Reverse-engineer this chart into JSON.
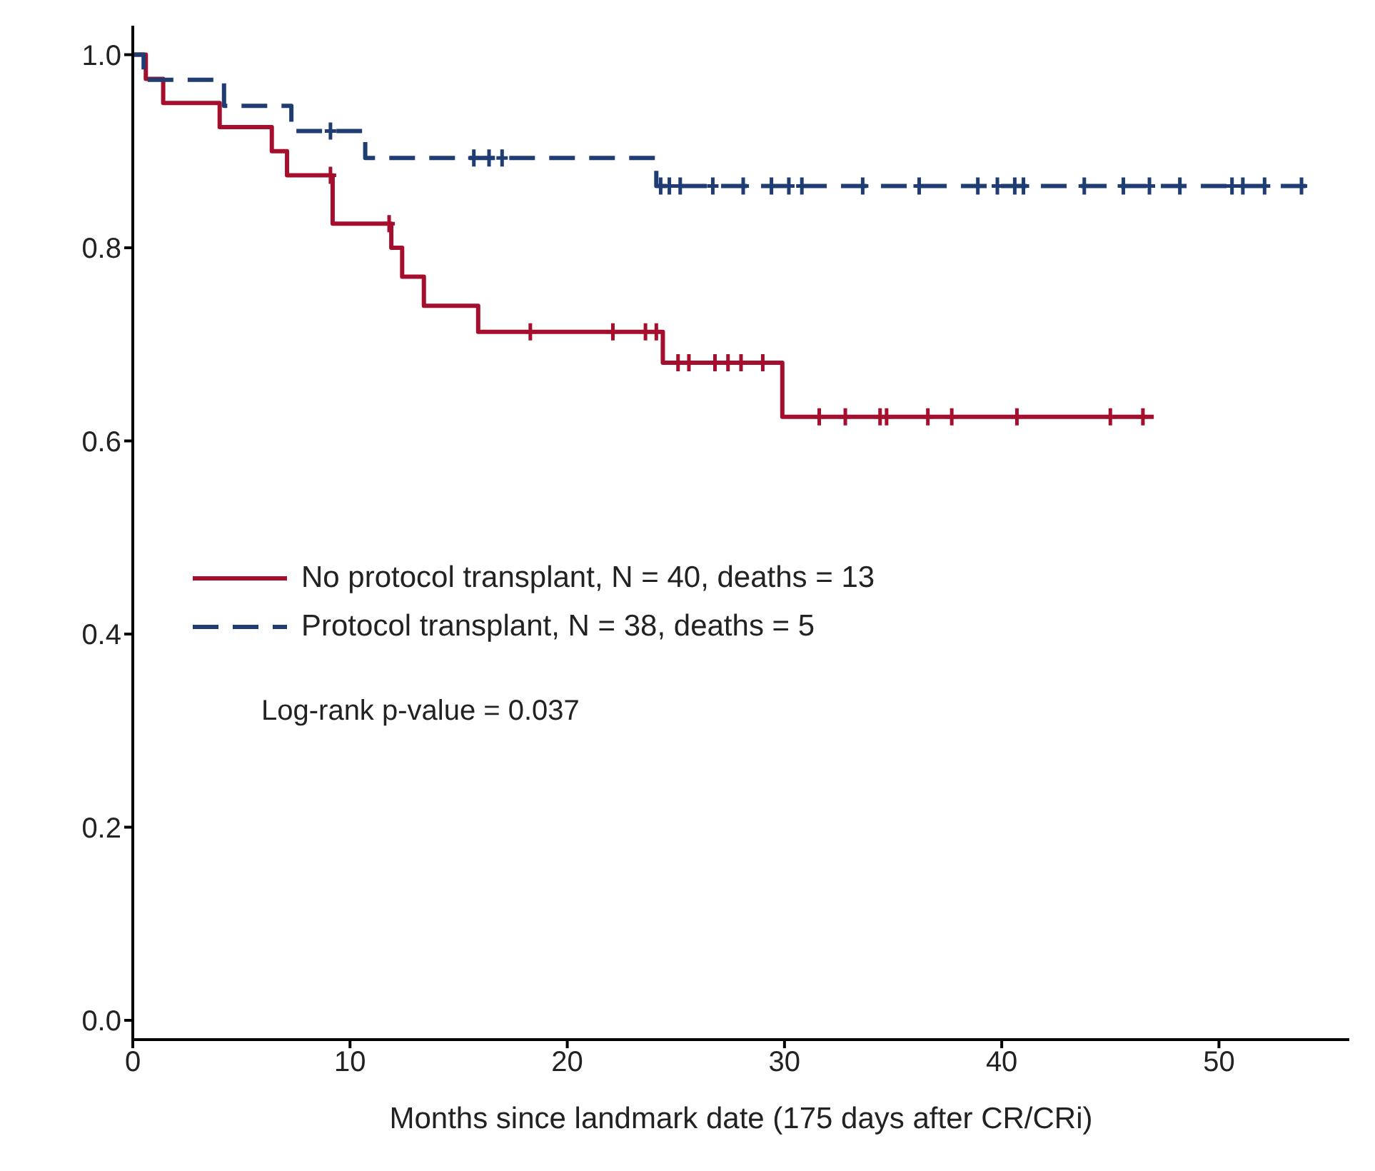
{
  "chart_data": {
    "type": "step",
    "xlabel": "Months since landmark date (175 days after CR/CRi)",
    "xlim": [
      0,
      56
    ],
    "xticks": [
      0,
      10,
      20,
      30,
      40,
      50
    ],
    "ylim": [
      -0.02,
      1.03
    ],
    "yticks": [
      {
        "value": 0,
        "label": "0.0"
      },
      {
        "value": 0.2,
        "label": "0.2"
      },
      {
        "value": 0.4,
        "label": "0.4"
      },
      {
        "value": 0.6,
        "label": "0.6"
      },
      {
        "value": 0.8,
        "label": "0.8"
      },
      {
        "value": 1,
        "label": "1.0"
      }
    ],
    "grid": false,
    "legend": "left",
    "annotations": [
      "Log-rank p-value = 0.037"
    ],
    "series": [
      {
        "name": "No protocol transplant, N = 40, deaths = 13",
        "color": "#a50f2d",
        "line_style": "solid",
        "x": [
          0,
          0.6,
          1.4,
          4.0,
          6.4,
          7.1,
          9.2,
          11.9,
          12.4,
          13.4,
          15.9,
          24.4,
          29.9,
          47.0
        ],
        "values": [
          1,
          0.975,
          0.95,
          0.925,
          0.9,
          0.875,
          0.825,
          0.8,
          0.77,
          0.74,
          0.713,
          0.681,
          0.625,
          0.625
        ]
      },
      {
        "name": "Protocol transplant, N = 38, deaths = 5",
        "color": "#1f3c73",
        "line_style": "dashed",
        "x": [
          0,
          0.5,
          4.2,
          7.3,
          10.7,
          24.1,
          54.0
        ],
        "values": [
          1,
          0.974,
          0.947,
          0.921,
          0.893,
          0.864,
          0.864
        ]
      },
      {
        "type": "scatter",
        "color": "#a50f2d",
        "marker": "cross",
        "x": [
          9.1,
          11.8,
          18.3,
          22.1,
          23.6,
          24.1,
          25.1,
          25.6,
          26.8,
          27.4,
          28.0,
          29.0,
          31.6,
          32.8,
          34.4,
          34.7,
          36.6,
          37.7,
          40.7,
          45.0,
          46.5
        ],
        "values": [
          0.875,
          0.825,
          0.713,
          0.713,
          0.713,
          0.713,
          0.681,
          0.681,
          0.681,
          0.681,
          0.681,
          0.681,
          0.625,
          0.625,
          0.625,
          0.625,
          0.625,
          0.625,
          0.625,
          0.625,
          0.625
        ]
      },
      {
        "type": "scatter",
        "color": "#1f3c73",
        "marker": "cross",
        "x": [
          9.1,
          15.7,
          16.4,
          17.0,
          24.3,
          24.7,
          25.2,
          26.7,
          28.1,
          29.4,
          30.2,
          30.8,
          33.6,
          36.2,
          38.9,
          39.8,
          40.6,
          41.0,
          43.8,
          45.6,
          46.8,
          48.2,
          50.6,
          51.1,
          52.1,
          53.8
        ],
        "values": [
          0.921,
          0.893,
          0.893,
          0.893,
          0.864,
          0.864,
          0.864,
          0.864,
          0.864,
          0.864,
          0.864,
          0.864,
          0.864,
          0.864,
          0.864,
          0.864,
          0.864,
          0.864,
          0.864,
          0.864,
          0.864,
          0.864,
          0.864,
          0.864,
          0.864,
          0.864
        ]
      }
    ]
  }
}
